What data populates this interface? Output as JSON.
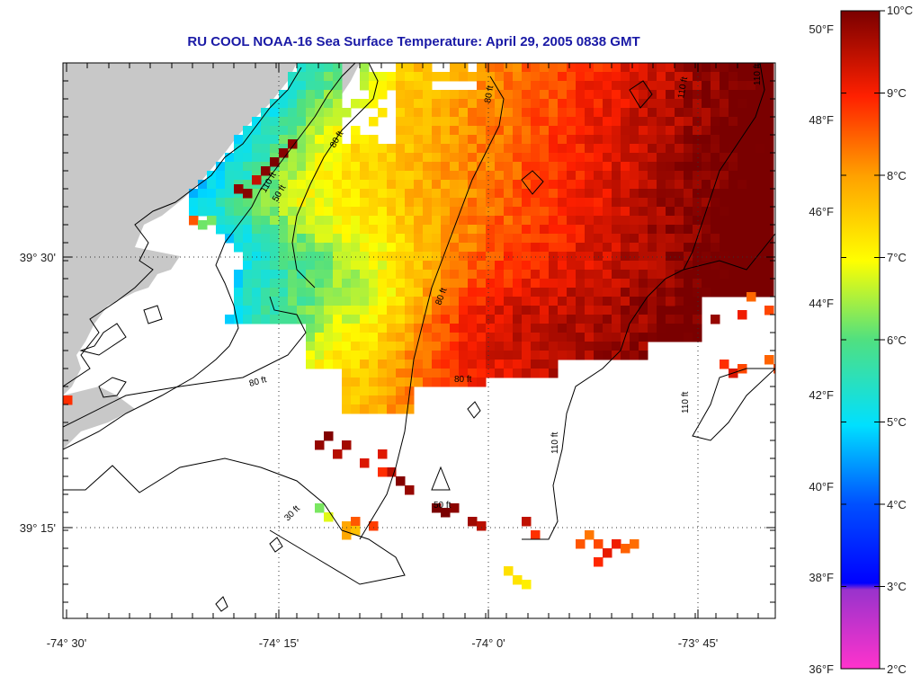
{
  "title": "RU COOL  NOAA-16  Sea Surface Temperature:  April 29, 2005 0838 GMT",
  "x_ticks": [
    "-74° 30'",
    "-74° 15'",
    "-74° 0'",
    "-73° 45'"
  ],
  "y_ticks": [
    "39° 30'",
    "39° 15'"
  ],
  "colorbar": {
    "celsius": [
      "10°C",
      "9°C",
      "8°C",
      "7°C",
      "6°C",
      "5°C",
      "4°C",
      "3°C",
      "2°C"
    ],
    "fahrenheit": [
      "50°F",
      "48°F",
      "46°F",
      "44°F",
      "42°F",
      "40°F",
      "38°F",
      "36°F"
    ]
  },
  "contour_labels": [
    "80 ft",
    "80 ft",
    "110 ft",
    "80 ft",
    "110 ft",
    "80 ft",
    "80 ft",
    "50 ft",
    "110 ft",
    "110 ft",
    "110 ft",
    "50 ft",
    "30 ft"
  ],
  "colors": {
    "land": "#c8c8c8",
    "title": "#1a1aa6",
    "colormap": [
      "#ff33cc",
      "#9933cc",
      "#0000ff",
      "#00a0ff",
      "#00e0e0",
      "#40e080",
      "#ffff00",
      "#ffa000",
      "#ff3000",
      "#d00000",
      "#800000"
    ]
  }
}
